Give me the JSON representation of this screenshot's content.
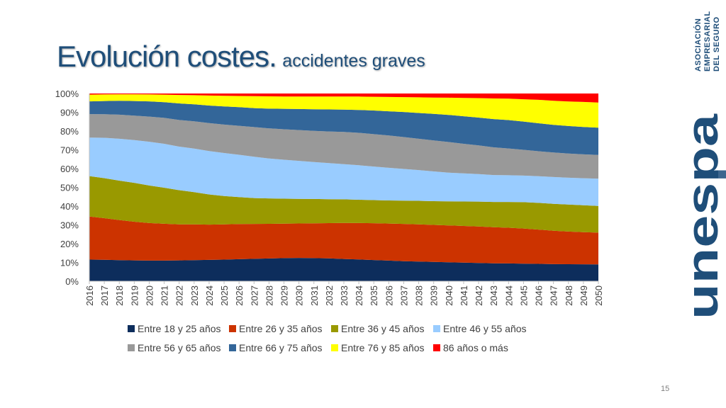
{
  "slide": {
    "title_main": "Evolución costes.",
    "title_sub": "accidentes graves",
    "page_number": "15"
  },
  "logo": {
    "brand": "unespa",
    "brand_mirror": "unespa",
    "lines": [
      "ASOCIACIÓN",
      "EMPRESARIAL",
      "DEL SEGURO"
    ]
  },
  "colors": {
    "title": "#1f4e79",
    "series": [
      "#0d2d5c",
      "#cc3300",
      "#999900",
      "#99ccff",
      "#999999",
      "#336699",
      "#ffff00",
      "#ff0000"
    ]
  },
  "chart_data": {
    "type": "area",
    "stacked": true,
    "percent_axis": true,
    "ylim": [
      0,
      100
    ],
    "yticks": [
      "0%",
      "10%",
      "20%",
      "30%",
      "40%",
      "50%",
      "60%",
      "70%",
      "80%",
      "90%",
      "100%"
    ],
    "categories": [
      "2016",
      "2017",
      "2018",
      "2019",
      "2020",
      "2021",
      "2022",
      "2023",
      "2024",
      "2025",
      "2026",
      "2027",
      "2028",
      "2029",
      "2030",
      "2031",
      "2032",
      "2033",
      "2034",
      "2035",
      "2036",
      "2037",
      "2038",
      "2039",
      "2040",
      "2041",
      "2042",
      "2043",
      "2044",
      "2045",
      "2046",
      "2047",
      "2048",
      "2049",
      "2050"
    ],
    "legend_position": "bottom",
    "grid": false,
    "series": [
      {
        "name": "Entre 18 y 25 años",
        "values": [
          11.5,
          11.4,
          11.2,
          11.1,
          11.0,
          11.0,
          11.1,
          11.2,
          11.3,
          11.4,
          11.6,
          11.8,
          12.0,
          12.2,
          12.3,
          12.2,
          12.0,
          11.7,
          11.4,
          11.1,
          10.8,
          10.5,
          10.3,
          10.1,
          9.9,
          9.7,
          9.5,
          9.4,
          9.3,
          9.2,
          9.1,
          9.0,
          9.0,
          9.0,
          9.0
        ]
      },
      {
        "name": "Entre 26 y 35 años",
        "values": [
          23.0,
          22.2,
          21.4,
          20.6,
          20.0,
          19.6,
          19.2,
          18.9,
          18.7,
          18.6,
          18.5,
          18.4,
          18.3,
          18.2,
          18.2,
          18.4,
          18.6,
          18.9,
          19.1,
          19.3,
          19.4,
          19.5,
          19.5,
          19.4,
          19.3,
          19.2,
          19.1,
          18.9,
          18.7,
          18.4,
          18.0,
          17.6,
          17.3,
          17.1,
          17.0
        ]
      },
      {
        "name": "Entre 36 y 45 años",
        "values": [
          21.5,
          21.3,
          21.0,
          20.7,
          20.0,
          19.2,
          18.2,
          17.1,
          16.0,
          15.0,
          14.2,
          13.6,
          13.4,
          13.2,
          13.0,
          12.8,
          12.6,
          12.4,
          12.2,
          12.1,
          12.1,
          12.2,
          12.3,
          12.4,
          12.6,
          12.8,
          13.0,
          13.2,
          13.5,
          13.8,
          14.0,
          14.2,
          14.3,
          14.3,
          14.3
        ]
      },
      {
        "name": "Entre 46 y 55 años",
        "values": [
          20.5,
          21.5,
          22.3,
          22.8,
          23.3,
          23.4,
          23.2,
          23.1,
          23.0,
          22.7,
          22.3,
          21.8,
          21.1,
          20.6,
          20.1,
          19.5,
          19.0,
          18.5,
          18.1,
          17.6,
          17.1,
          16.6,
          16.1,
          15.6,
          15.0,
          14.7,
          14.4,
          14.1,
          14.0,
          13.9,
          14.0,
          14.1,
          14.2,
          14.4,
          14.6
        ]
      },
      {
        "name": "Entre 56 y 65 años",
        "values": [
          12.5,
          12.6,
          12.8,
          13.0,
          13.4,
          13.8,
          14.2,
          14.5,
          14.8,
          15.0,
          15.3,
          15.6,
          15.9,
          16.1,
          16.3,
          16.5,
          16.7,
          16.9,
          17.0,
          17.0,
          16.9,
          16.7,
          16.4,
          16.2,
          16.0,
          15.5,
          15.0,
          14.5,
          14.0,
          13.5,
          13.1,
          12.9,
          12.8,
          12.7,
          12.7
        ]
      },
      {
        "name": "Entre 66 y 75 años",
        "values": [
          6.8,
          7.0,
          7.4,
          7.8,
          8.1,
          8.4,
          8.8,
          9.0,
          9.3,
          9.6,
          9.8,
          10.0,
          10.4,
          10.8,
          11.1,
          11.4,
          11.6,
          11.7,
          12.0,
          12.4,
          12.7,
          13.1,
          13.5,
          13.9,
          14.2,
          14.4,
          14.5,
          14.8,
          14.9,
          14.8,
          14.7,
          14.6,
          14.6,
          14.6,
          14.6
        ]
      },
      {
        "name": "Entre 76 y 85 años",
        "values": [
          3.6,
          3.5,
          3.5,
          3.6,
          3.7,
          4.0,
          4.5,
          4.8,
          5.3,
          5.6,
          5.9,
          6.3,
          6.5,
          6.5,
          6.6,
          6.7,
          6.8,
          6.9,
          7.0,
          7.2,
          7.5,
          7.8,
          8.2,
          8.6,
          9.0,
          9.6,
          10.2,
          10.8,
          11.2,
          11.7,
          12.3,
          12.7,
          13.0,
          13.3,
          13.5
        ]
      },
      {
        "name": "86 años o más",
        "values": [
          0.6,
          0.5,
          0.4,
          0.4,
          0.5,
          0.6,
          0.8,
          0.9,
          1.1,
          1.2,
          1.3,
          1.4,
          1.5,
          1.6,
          1.6,
          1.6,
          1.6,
          1.6,
          1.6,
          1.7,
          1.8,
          1.9,
          2.0,
          2.1,
          2.2,
          2.3,
          2.4,
          2.6,
          2.7,
          3.0,
          3.3,
          3.8,
          4.2,
          4.5,
          4.8
        ]
      }
    ]
  }
}
